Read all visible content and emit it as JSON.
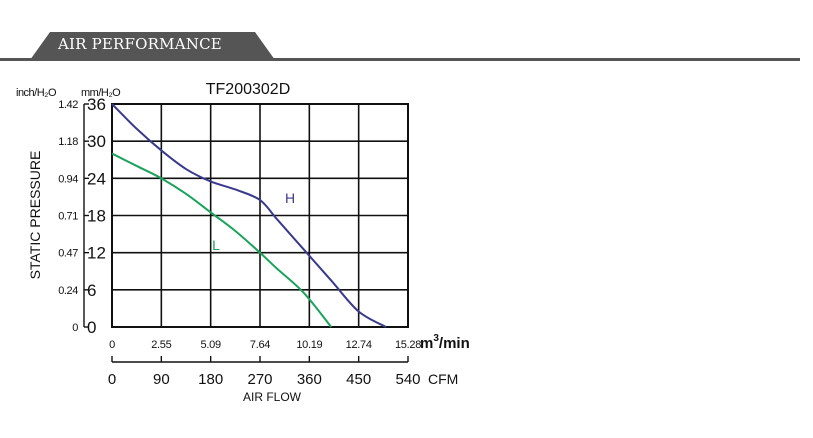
{
  "section": {
    "title": "AIR PERFORMANCE",
    "tab_color": "#555555"
  },
  "chart_data": {
    "type": "line",
    "title": "TF200302D",
    "ylabel": "STATIC PRESSURE",
    "xlabel": "AIR FLOW",
    "y_unit_left": "inch/H₂O",
    "y_unit_right": "mm/H₂O",
    "x_unit_top": "m³/min",
    "x_unit_top_base": "m",
    "x_unit_top_sup": "3",
    "x_unit_top_tail": "/min",
    "x_unit_bottom": "CFM",
    "ylim": [
      0,
      36
    ],
    "xlim": [
      0,
      540
    ],
    "y_ticks_mm": [
      "36",
      "30",
      "24",
      "18",
      "12",
      "6",
      "0"
    ],
    "y_ticks_mm_values": [
      36,
      30,
      24,
      18,
      12,
      6,
      0
    ],
    "y_ticks_inch": [
      "1.42",
      "1.18",
      "0.94",
      "0.71",
      "0.47",
      "0.24",
      "0"
    ],
    "x_ticks_m3min": [
      "0",
      "2.55",
      "5.09",
      "7.64",
      "10.19",
      "12.74",
      "15.28"
    ],
    "x_ticks_cfm": [
      "0",
      "90",
      "180",
      "270",
      "360",
      "450",
      "540"
    ],
    "x_ticks_cfm_values": [
      0,
      90,
      180,
      270,
      360,
      450,
      540
    ],
    "grid": true,
    "series": [
      {
        "name": "H",
        "color": "#3a3a8c",
        "x": [
          0,
          45,
          90,
          135,
          180,
          225,
          270,
          300,
          350,
          400,
          450,
          500
        ],
        "y": [
          36,
          32,
          28.5,
          25.5,
          23.5,
          22.2,
          20.5,
          17.5,
          12.5,
          7.5,
          2.5,
          0
        ]
      },
      {
        "name": "L",
        "color": "#1aa35a",
        "x": [
          0,
          45,
          90,
          135,
          180,
          225,
          270,
          300,
          350,
          400
        ],
        "y": [
          28,
          26,
          24,
          21.5,
          18.5,
          15.5,
          12,
          9.5,
          5.5,
          0
        ]
      }
    ]
  }
}
